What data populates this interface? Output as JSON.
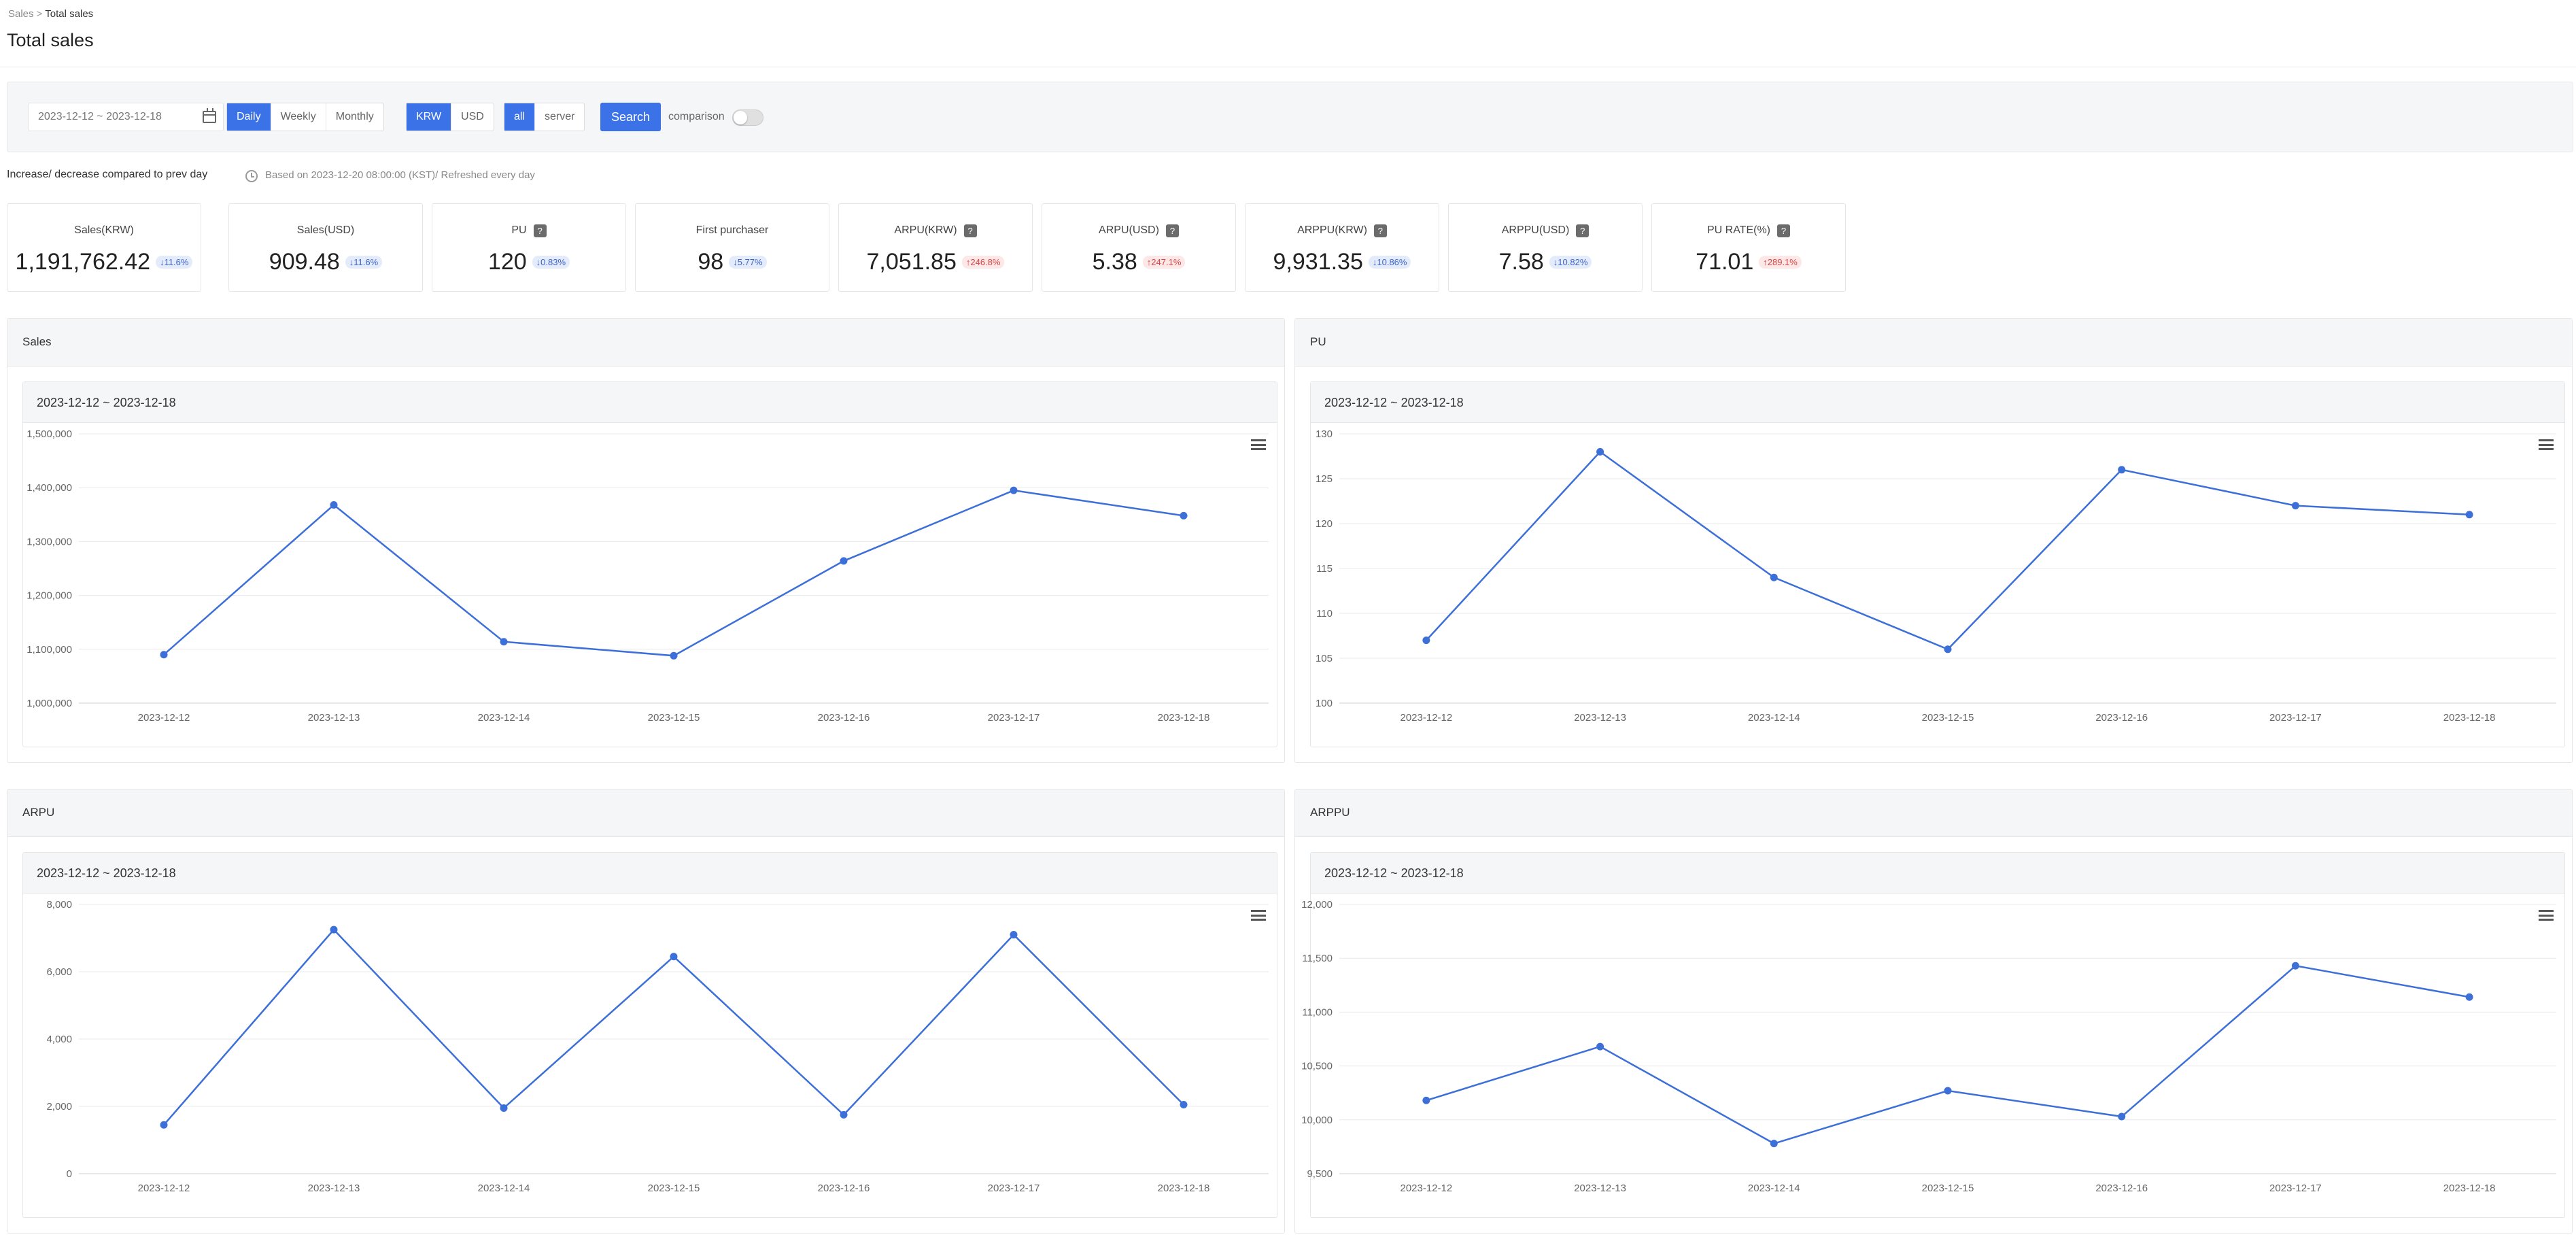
{
  "breadcrumb": {
    "parent": "Sales",
    "separator": ">",
    "current": "Total sales"
  },
  "page_title": "Total sales",
  "filters": {
    "date_range": "2023-12-12 ~ 2023-12-18",
    "period_options": [
      "Daily",
      "Weekly",
      "Monthly"
    ],
    "period_selected": "Daily",
    "currency_options": [
      "KRW",
      "USD"
    ],
    "currency_selected": "KRW",
    "server_options": [
      "all",
      "server"
    ],
    "server_selected": "all",
    "search_label": "Search",
    "comparison_label": "comparison",
    "comparison_on": false
  },
  "notes": {
    "compare": "Increase/ decrease compared to prev day",
    "basis": "Based on 2023-12-20 08:00:00 (KST)/ Refreshed every day"
  },
  "colors": {
    "accent": "#3c72e8",
    "line": "#3d6fd8",
    "down": "#3c63c9",
    "up": "#d94545"
  },
  "kpis": [
    {
      "label": "Sales(KRW)",
      "help": false,
      "value": "1,191,762.42",
      "delta": "11.6%",
      "direction": "down",
      "arrow": "↓"
    },
    {
      "label": "Sales(USD)",
      "help": false,
      "value": "909.48",
      "delta": "11.6%",
      "direction": "down",
      "arrow": "↓"
    },
    {
      "label": "PU",
      "help": true,
      "value": "120",
      "delta": "0.83%",
      "direction": "down",
      "arrow": "↓"
    },
    {
      "label": "First purchaser",
      "help": false,
      "value": "98",
      "delta": "5.77%",
      "direction": "down",
      "arrow": "↓"
    },
    {
      "label": "ARPU(KRW)",
      "help": true,
      "value": "7,051.85",
      "delta": "246.8%",
      "direction": "up",
      "arrow": "↑"
    },
    {
      "label": "ARPU(USD)",
      "help": true,
      "value": "5.38",
      "delta": "247.1%",
      "direction": "up",
      "arrow": "↑"
    },
    {
      "label": "ARPPU(KRW)",
      "help": true,
      "value": "9,931.35",
      "delta": "10.86%",
      "direction": "down",
      "arrow": "↓"
    },
    {
      "label": "ARPPU(USD)",
      "help": true,
      "value": "7.58",
      "delta": "10.82%",
      "direction": "down",
      "arrow": "↓"
    },
    {
      "label": "PU RATE(%)",
      "help": true,
      "value": "71.01",
      "delta": "289.1%",
      "direction": "up",
      "arrow": "↑"
    }
  ],
  "help_glyph": "?",
  "panels": [
    {
      "title": "Sales",
      "subtitle": "2023-12-12 ~ 2023-12-18"
    },
    {
      "title": "PU",
      "subtitle": "2023-12-12 ~ 2023-12-18"
    },
    {
      "title": "ARPU",
      "subtitle": "2023-12-12 ~ 2023-12-18"
    },
    {
      "title": "ARPPU",
      "subtitle": "2023-12-12 ~ 2023-12-18"
    }
  ],
  "chart_data": [
    {
      "type": "line",
      "title": "",
      "xlabel": "",
      "ylabel": "",
      "x": [
        "2023-12-12",
        "2023-12-13",
        "2023-12-14",
        "2023-12-15",
        "2023-12-16",
        "2023-12-17",
        "2023-12-18"
      ],
      "series": [
        {
          "values": [
            1090000,
            1368000,
            1114000,
            1088000,
            1264000,
            1395000,
            1348000
          ]
        }
      ],
      "ylim": [
        1000000,
        1500000
      ],
      "yticks": [
        1000000,
        1100000,
        1200000,
        1300000,
        1400000,
        1500000
      ],
      "ytick_labels": [
        "1,000,000",
        "1,100,000",
        "1,200,000",
        "1,300,000",
        "1,400,000",
        "1,500,000"
      ],
      "grid": true,
      "legend": "none"
    },
    {
      "type": "line",
      "title": "",
      "xlabel": "",
      "ylabel": "",
      "x": [
        "2023-12-12",
        "2023-12-13",
        "2023-12-14",
        "2023-12-15",
        "2023-12-16",
        "2023-12-17",
        "2023-12-18"
      ],
      "series": [
        {
          "values": [
            107,
            128,
            114,
            106,
            126,
            122,
            121
          ]
        }
      ],
      "ylim": [
        100,
        130
      ],
      "yticks": [
        100,
        105,
        110,
        115,
        120,
        125,
        130
      ],
      "ytick_labels": [
        "100",
        "105",
        "110",
        "115",
        "120",
        "125",
        "130"
      ],
      "grid": true,
      "legend": "none"
    },
    {
      "type": "line",
      "title": "",
      "xlabel": "",
      "ylabel": "",
      "x": [
        "2023-12-12",
        "2023-12-13",
        "2023-12-14",
        "2023-12-15",
        "2023-12-16",
        "2023-12-17",
        "2023-12-18"
      ],
      "series": [
        {
          "values": [
            1450,
            7250,
            1950,
            6450,
            1750,
            7100,
            2050
          ]
        }
      ],
      "ylim": [
        0,
        8000
      ],
      "yticks": [
        0,
        2000,
        4000,
        6000,
        8000
      ],
      "ytick_labels": [
        "0",
        "2,000",
        "4,000",
        "6,000",
        "8,000"
      ],
      "grid": true,
      "legend": "none"
    },
    {
      "type": "line",
      "title": "",
      "xlabel": "",
      "ylabel": "",
      "x": [
        "2023-12-12",
        "2023-12-13",
        "2023-12-14",
        "2023-12-15",
        "2023-12-16",
        "2023-12-17",
        "2023-12-18"
      ],
      "series": [
        {
          "values": [
            10180,
            10680,
            9780,
            10270,
            10030,
            11430,
            11140
          ]
        }
      ],
      "ylim": [
        9500,
        12000
      ],
      "yticks": [
        9500,
        10000,
        10500,
        11000,
        11500,
        12000
      ],
      "ytick_labels": [
        "9,500",
        "10,000",
        "10,500",
        "11,000",
        "11,500",
        "12,000"
      ],
      "grid": true,
      "legend": "none"
    }
  ]
}
